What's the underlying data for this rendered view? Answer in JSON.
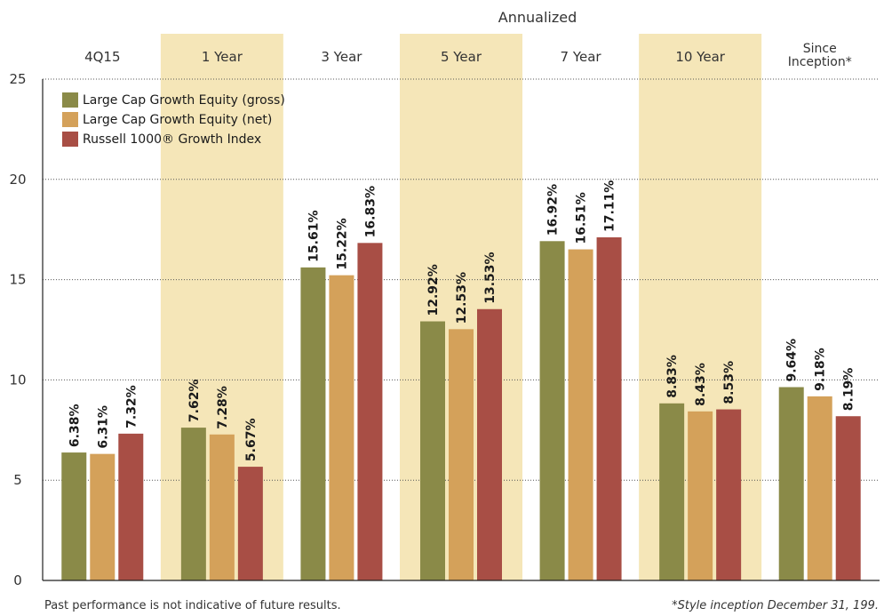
{
  "chart_data": {
    "type": "bar",
    "annualized_label": "Annualized",
    "categories": [
      "4Q15",
      "1 Year",
      "3 Year",
      "5 Year",
      "7 Year",
      "10 Year",
      "Since Inception*"
    ],
    "category_lines": [
      [
        "4Q15"
      ],
      [
        "1 Year"
      ],
      [
        "3 Year"
      ],
      [
        "5 Year"
      ],
      [
        "7 Year"
      ],
      [
        "10 Year"
      ],
      [
        "Since",
        "Inception*"
      ]
    ],
    "shaded_categories": [
      false,
      true,
      false,
      true,
      false,
      true,
      false
    ],
    "series": [
      {
        "name": "Large Cap Growth Equity (gross)",
        "color": "#8a8a48",
        "values": [
          6.38,
          7.62,
          15.61,
          12.92,
          16.92,
          8.83,
          9.64
        ],
        "labels": [
          "6.38%",
          "7.62%",
          "15.61%",
          "12.92%",
          "16.92%",
          "8.83%",
          "9.64%"
        ]
      },
      {
        "name": "Large Cap Growth Equity (net)",
        "color": "#d4a15a",
        "values": [
          6.31,
          7.28,
          15.22,
          12.53,
          16.51,
          8.43,
          9.18
        ],
        "labels": [
          "6.31%",
          "7.28%",
          "15.22%",
          "12.53%",
          "16.51%",
          "8.43%",
          "9.18%"
        ]
      },
      {
        "name": "Russell 1000® Growth Index",
        "color": "#a84e45",
        "values": [
          7.32,
          5.67,
          16.83,
          13.53,
          17.11,
          8.53,
          8.19
        ],
        "labels": [
          "7.32%",
          "5.67%",
          "16.83%",
          "13.53%",
          "17.11%",
          "8.53%",
          "8.19%"
        ]
      }
    ],
    "yticks": [
      "0",
      "5",
      "10",
      "15",
      "20",
      "25"
    ],
    "ylim": [
      0,
      25
    ],
    "grid": true,
    "legend_position": "top-left",
    "colors": {
      "shade": "#f5e6b8",
      "grid": "#555555",
      "text": "#333333"
    }
  },
  "footnotes": {
    "left": "Past performance is not indicative of future results.",
    "right": "*Style inception December 31, 199."
  }
}
